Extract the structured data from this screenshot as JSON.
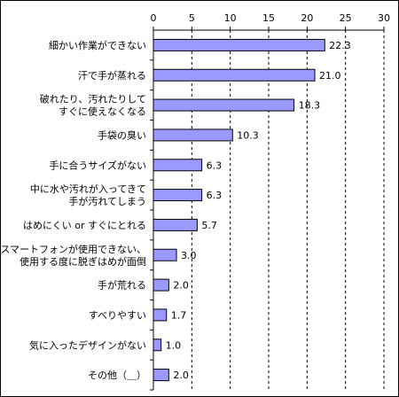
{
  "chart_data": {
    "type": "bar",
    "orientation": "horizontal",
    "title": "",
    "xlabel": "",
    "ylabel": "",
    "xlim": [
      0,
      30
    ],
    "x_ticks": [
      0,
      5,
      10,
      15,
      20,
      25,
      30
    ],
    "x_axis_position": "top",
    "grid": "vertical dashed",
    "bar_color": "#9999ff",
    "bar_edge_color": "#000000",
    "categories": [
      [
        "細かい作業ができない"
      ],
      [
        "汗で手が蒸れる"
      ],
      [
        "破れたり、汚れたりして",
        "すぐに使えなくなる"
      ],
      [
        "手袋の臭い"
      ],
      [
        "手に合うサイズがない"
      ],
      [
        "中に水や汚れが入ってきて",
        "手が汚れてしまう"
      ],
      [
        "はめにくい or すぐにとれる"
      ],
      [
        "スマートフォンが使用できない、",
        "使用する度に脱ぎはめが面倒"
      ],
      [
        "手が荒れる"
      ],
      [
        "すべりやすい"
      ],
      [
        "気に入ったデザインがない"
      ],
      [
        "その他（＿）"
      ]
    ],
    "values": [
      22.3,
      21.0,
      18.3,
      10.3,
      6.3,
      6.3,
      5.7,
      3.0,
      2.0,
      1.7,
      1.0,
      2.0
    ],
    "value_labels": [
      "22.3",
      "21.0",
      "18.3",
      "10.3",
      "6.3",
      "6.3",
      "5.7",
      "3.0",
      "2.0",
      "1.7",
      "1.0",
      "2.0"
    ]
  }
}
